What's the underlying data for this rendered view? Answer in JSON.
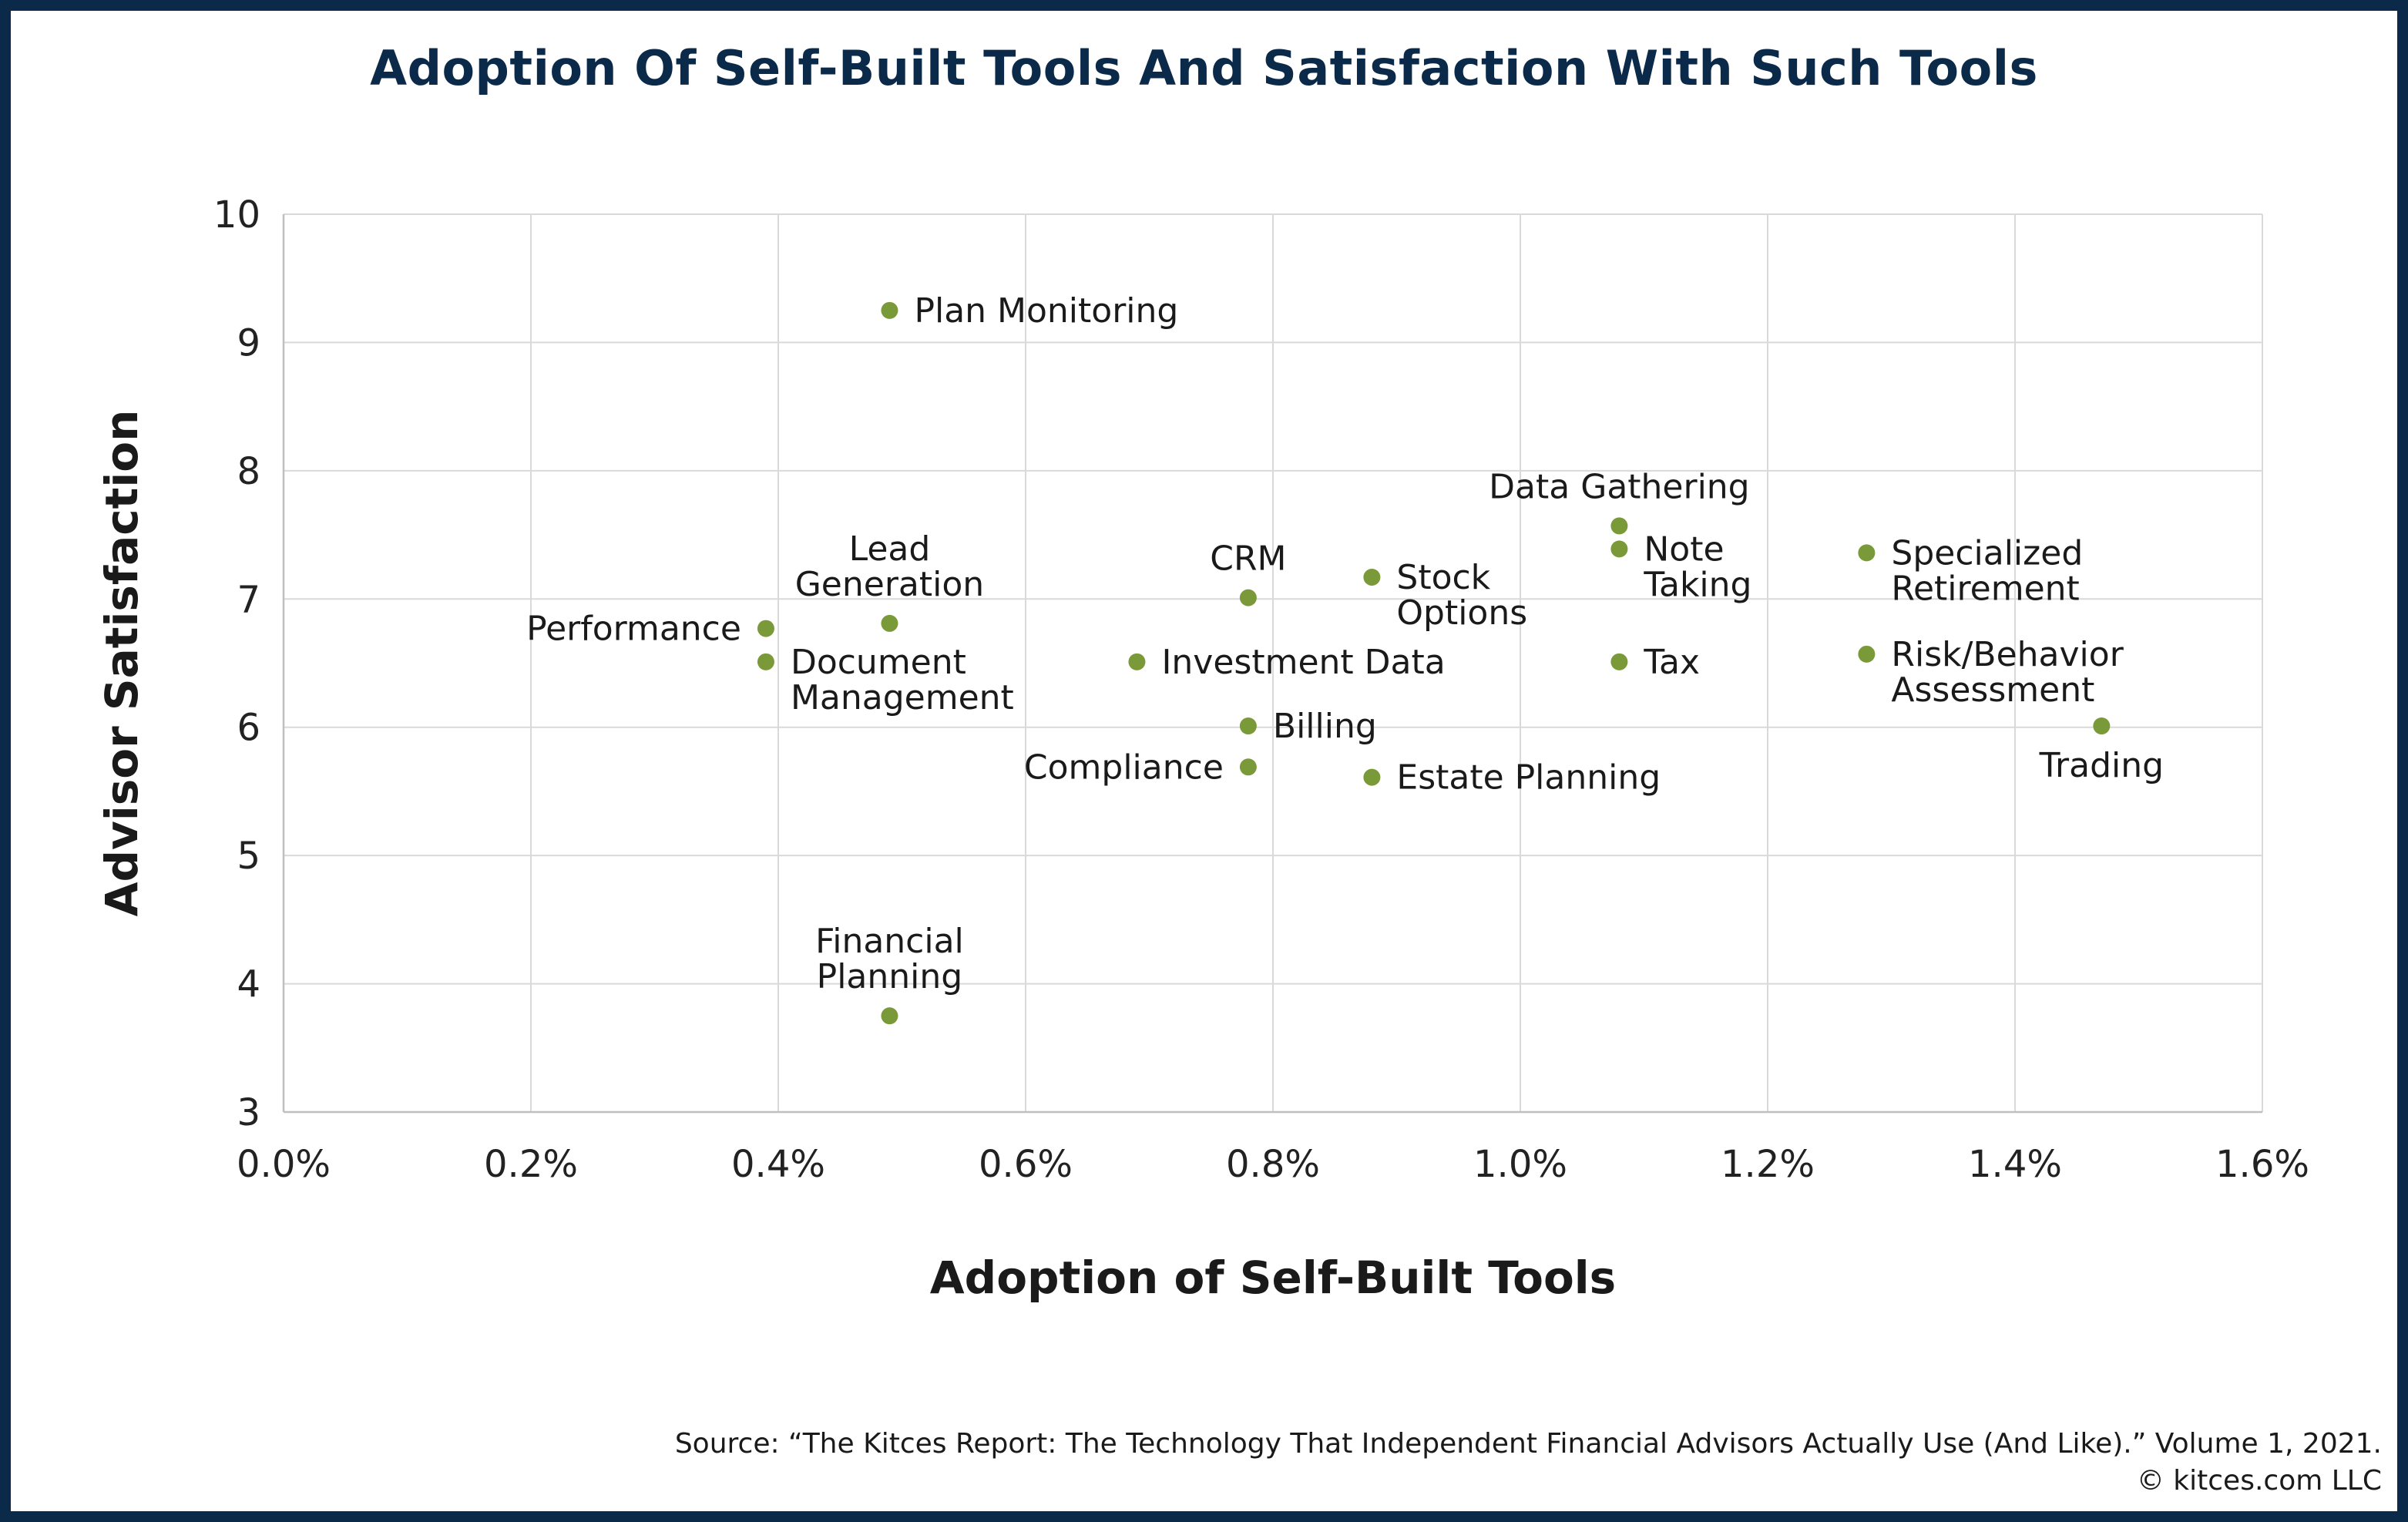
{
  "chart_data": {
    "type": "scatter",
    "title": "Adoption Of Self-Built Tools And Satisfaction With Such Tools",
    "xlabel": "Adoption of Self-Built Tools",
    "ylabel": "Advisor Satisfaction",
    "xlim": [
      0.0,
      1.6
    ],
    "ylim": [
      3,
      10
    ],
    "x_unit": "%",
    "x_ticks": [
      "0.0%",
      "0.2%",
      "0.4%",
      "0.6%",
      "0.8%",
      "1.0%",
      "1.2%",
      "1.4%",
      "1.6%"
    ],
    "y_ticks": [
      "3",
      "4",
      "5",
      "6",
      "7",
      "8",
      "9",
      "10"
    ],
    "grid": true,
    "point_color": "#7a9a3a",
    "points": [
      {
        "label": [
          "Plan Monitoring"
        ],
        "x": 0.49,
        "y": 9.25,
        "label_pos": "right"
      },
      {
        "label": [
          "Data Gathering"
        ],
        "x": 1.08,
        "y": 7.57,
        "label_pos": "above"
      },
      {
        "label": [
          "Note",
          "Taking"
        ],
        "x": 1.08,
        "y": 7.39,
        "label_pos": "right"
      },
      {
        "label": [
          "Specialized",
          "Retirement"
        ],
        "x": 1.28,
        "y": 7.36,
        "label_pos": "right"
      },
      {
        "label": [
          "Stock",
          "Options"
        ],
        "x": 0.88,
        "y": 7.17,
        "label_pos": "right"
      },
      {
        "label": [
          "CRM"
        ],
        "x": 0.78,
        "y": 7.01,
        "label_pos": "above"
      },
      {
        "label": [
          "Lead",
          "Generation"
        ],
        "x": 0.49,
        "y": 6.81,
        "label_pos": "above"
      },
      {
        "label": [
          "Performance"
        ],
        "x": 0.39,
        "y": 6.77,
        "label_pos": "left"
      },
      {
        "label": [
          "Risk/Behavior",
          "Assessment"
        ],
        "x": 1.28,
        "y": 6.57,
        "label_pos": "right"
      },
      {
        "label": [
          "Document",
          "Management"
        ],
        "x": 0.39,
        "y": 6.51,
        "label_pos": "right"
      },
      {
        "label": [
          "Investment Data"
        ],
        "x": 0.69,
        "y": 6.51,
        "label_pos": "right"
      },
      {
        "label": [
          "Tax"
        ],
        "x": 1.08,
        "y": 6.51,
        "label_pos": "right"
      },
      {
        "label": [
          "Billing"
        ],
        "x": 0.78,
        "y": 6.01,
        "label_pos": "right"
      },
      {
        "label": [
          "Trading"
        ],
        "x": 1.47,
        "y": 6.01,
        "label_pos": "below"
      },
      {
        "label": [
          "Compliance"
        ],
        "x": 0.78,
        "y": 5.69,
        "label_pos": "left"
      },
      {
        "label": [
          "Estate Planning"
        ],
        "x": 0.88,
        "y": 5.61,
        "label_pos": "right"
      },
      {
        "label": [
          "Financial",
          "Planning"
        ],
        "x": 0.49,
        "y": 3.75,
        "label_pos": "above"
      }
    ]
  },
  "footer": {
    "source": "Source: “The Kitces Report: The Technology That Independent Financial Advisors Actually Use (And Like).” Volume 1, 2021.",
    "copyright": "© kitces.com LLC"
  }
}
